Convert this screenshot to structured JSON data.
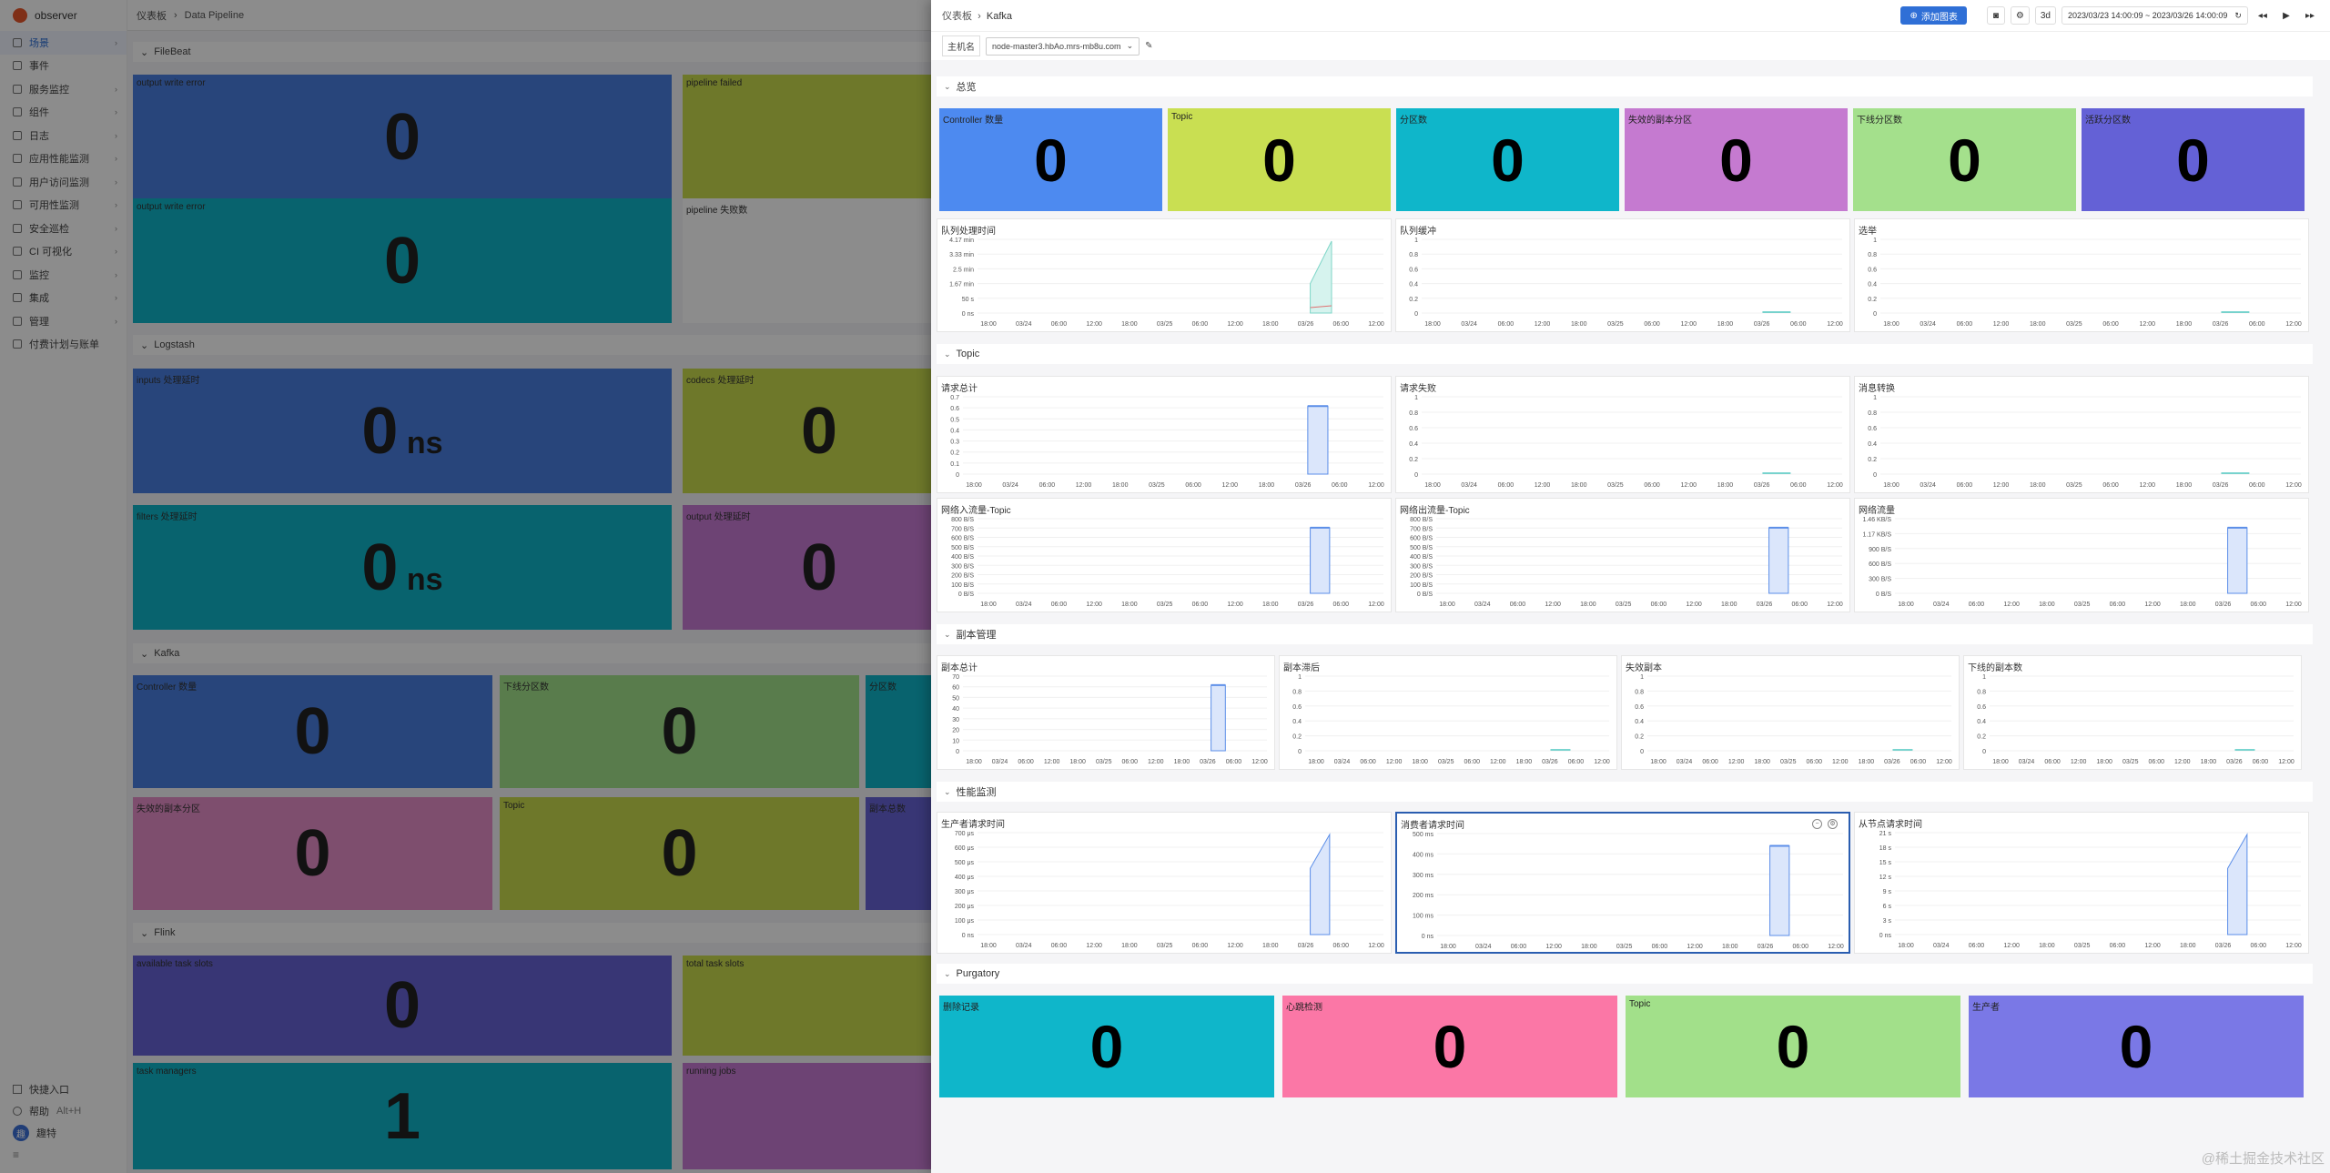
{
  "app": {
    "name": "observer"
  },
  "sidebar": {
    "items": [
      {
        "label": "场景",
        "icon": "grid-icon",
        "arrow": "›"
      },
      {
        "label": "事件",
        "icon": "bell-icon",
        "arrow": ""
      },
      {
        "label": "服务监控",
        "icon": "service-icon",
        "arrow": "›"
      },
      {
        "label": "组件",
        "icon": "cube-icon",
        "arrow": "›"
      },
      {
        "label": "日志",
        "icon": "log-icon",
        "arrow": "›"
      },
      {
        "label": "应用性能监测",
        "icon": "apm-icon",
        "arrow": "›"
      },
      {
        "label": "用户访问监测",
        "icon": "user-icon",
        "arrow": "›"
      },
      {
        "label": "可用性监测",
        "icon": "pulse-icon",
        "arrow": "›"
      },
      {
        "label": "安全巡检",
        "icon": "shield-icon",
        "arrow": "›"
      },
      {
        "label": "CI 可视化",
        "icon": "ci-icon",
        "arrow": "›"
      },
      {
        "label": "监控",
        "icon": "monitor-icon",
        "arrow": "›"
      },
      {
        "label": "集成",
        "icon": "plug-icon",
        "arrow": "›"
      },
      {
        "label": "管理",
        "icon": "gear-icon",
        "arrow": "›"
      },
      {
        "label": "付费计划与账单",
        "icon": "bill-icon",
        "arrow": ""
      }
    ],
    "bottom": [
      {
        "label": "快捷入口"
      },
      {
        "label": "帮助",
        "hint": "Alt+H"
      },
      {
        "label": "趣特",
        "avatar": "趣"
      }
    ]
  },
  "background": {
    "breadcrumb": [
      "仪表板",
      "Data Pipeline"
    ],
    "sections": [
      "FileBeat",
      "Logstash",
      "Kafka",
      "Flink"
    ],
    "panels": [
      {
        "title": "output write error",
        "value": "0",
        "unit": "",
        "color": "#4a7fe0"
      },
      {
        "title": "pipeline failed",
        "value": "",
        "unit": "",
        "color": "#c8da4e"
      },
      {
        "title": "output write error",
        "value": "0",
        "unit": "",
        "color": "#10b5c8"
      },
      {
        "title": "pipeline 失败数",
        "value": "",
        "unit": "",
        "color": "#ffffff"
      },
      {
        "title": "inputs 处理延时",
        "value": "0",
        "unit": "ns",
        "color": "#4a7fe0"
      },
      {
        "title": "codecs 处理延时",
        "value": "0",
        "unit": "",
        "color": "#c8da4e"
      },
      {
        "title": "filters 处理延时",
        "value": "0",
        "unit": "ns",
        "color": "#10b5c8"
      },
      {
        "title": "output 处理延时",
        "value": "0",
        "unit": "",
        "color": "#c77bd4"
      },
      {
        "title": "Controller 数量",
        "value": "0",
        "unit": "",
        "color": "#4a7fe0"
      },
      {
        "title": "下线分区数",
        "value": "0",
        "unit": "",
        "color": "#a3e28a"
      },
      {
        "title": "分区数",
        "value": "",
        "unit": "",
        "color": "#10b5c8"
      },
      {
        "title": "失效的副本分区",
        "value": "0",
        "unit": "",
        "color": "#e58fc9"
      },
      {
        "title": "Topic",
        "value": "0",
        "unit": "",
        "color": "#c8da4e"
      },
      {
        "title": "副本总数",
        "value": "",
        "unit": "",
        "color": "#6663d6"
      },
      {
        "title": "available task slots",
        "value": "0",
        "unit": "",
        "color": "#6663d6"
      },
      {
        "title": "total task slots",
        "value": "",
        "unit": "",
        "color": "#c8da4e"
      },
      {
        "title": "task managers",
        "value": "1",
        "unit": "",
        "color": "#10b5c8"
      },
      {
        "title": "running jobs",
        "value": "",
        "unit": "",
        "color": "#c77bd4"
      }
    ]
  },
  "drawer": {
    "breadcrumb": [
      "仪表板",
      "Kafka"
    ],
    "add_chart": "添加图表",
    "time_shortcut": "3d",
    "time_range": "2023/03/23 14:00:09 ~ 2023/03/26 14:00:09",
    "host_label": "主机名",
    "host_value": "node-master3.hbAo.mrs-mb8u.com",
    "sections": {
      "overview": "总览",
      "topic": "Topic",
      "replica": "副本管理",
      "perf": "性能监测",
      "purgatory": "Purgatory"
    },
    "overview_stats": [
      {
        "title": "Controller 数量",
        "value": "0",
        "color": "#4d8af0"
      },
      {
        "title": "Topic",
        "value": "0",
        "color": "#c9df52"
      },
      {
        "title": "分区数",
        "value": "0",
        "color": "#0fb6ca"
      },
      {
        "title": "失效的副本分区",
        "value": "0",
        "color": "#c57ad0"
      },
      {
        "title": "下线分区数",
        "value": "0",
        "color": "#a4e08c"
      },
      {
        "title": "活跃分区数",
        "value": "0",
        "color": "#6461d6"
      }
    ],
    "purgatory_stats": [
      {
        "title": "删除记录",
        "value": "0",
        "color": "#0fb6ca"
      },
      {
        "title": "心跳检测",
        "value": "0",
        "color": "#fb77a6"
      },
      {
        "title": "Topic",
        "value": "0",
        "color": "#a2e08a"
      },
      {
        "title": "生产者",
        "value": "0",
        "color": "#7a78e6"
      }
    ],
    "x_ticks": [
      "18:00",
      "03/24",
      "06:00",
      "12:00",
      "18:00",
      "03/25",
      "06:00",
      "12:00",
      "18:00",
      "03/26",
      "06:00",
      "12:00"
    ],
    "panels": [
      {
        "id": "queue-time",
        "title": "队列处理时间",
        "yticks": [
          "4.17 min",
          "3.33 min",
          "2.5 min",
          "1.67 min",
          "50 s",
          "0 ns"
        ],
        "kind": "area",
        "color": "#7fd6c8"
      },
      {
        "id": "queue-size",
        "title": "队列缓冲",
        "yticks": [
          "1",
          "0.8",
          "0.6",
          "0.4",
          "0.2",
          "0"
        ],
        "kind": "flat",
        "color": "#4fc7c0"
      },
      {
        "id": "election",
        "title": "选举",
        "yticks": [
          "1",
          "0.8",
          "0.6",
          "0.4",
          "0.2",
          "0"
        ],
        "kind": "flat",
        "color": "#4fc7c0"
      },
      {
        "id": "req-total",
        "title": "请求总计",
        "yticks": [
          "0.7",
          "0.6",
          "0.5",
          "0.4",
          "0.3",
          "0.2",
          "0.1",
          "0"
        ],
        "kind": "block",
        "color": "#5b8ee8"
      },
      {
        "id": "req-fail",
        "title": "请求失败",
        "yticks": [
          "1",
          "0.8",
          "0.6",
          "0.4",
          "0.2",
          "0"
        ],
        "kind": "flat",
        "color": "#4fc7c0"
      },
      {
        "id": "msg-convert",
        "title": "消息转换",
        "yticks": [
          "1",
          "0.8",
          "0.6",
          "0.4",
          "0.2",
          "0"
        ],
        "kind": "flat",
        "color": "#4fc7c0"
      },
      {
        "id": "net-in-topic",
        "title": "网络入流量-Topic",
        "yticks": [
          "800 B/S",
          "700 B/S",
          "600 B/S",
          "500 B/S",
          "400 B/S",
          "300 B/S",
          "200 B/S",
          "100 B/S",
          "0 B/S"
        ],
        "kind": "block",
        "color": "#5b8ee8"
      },
      {
        "id": "net-out-topic",
        "title": "网络出流量-Topic",
        "yticks": [
          "800 B/S",
          "700 B/S",
          "600 B/S",
          "500 B/S",
          "400 B/S",
          "300 B/S",
          "200 B/S",
          "100 B/S",
          "0 B/S"
        ],
        "kind": "block",
        "color": "#5b8ee8"
      },
      {
        "id": "net-flow",
        "title": "网络流量",
        "yticks": [
          "1.46 KB/S",
          "1.17 KB/S",
          "900 B/S",
          "600 B/S",
          "300 B/S",
          "0 B/S"
        ],
        "kind": "block",
        "color": "#5b8ee8"
      },
      {
        "id": "replica-total",
        "title": "副本总计",
        "yticks": [
          "70",
          "60",
          "50",
          "40",
          "30",
          "20",
          "10",
          "0"
        ],
        "kind": "block",
        "color": "#5b8ee8"
      },
      {
        "id": "replica-lag",
        "title": "副本滞后",
        "yticks": [
          "1",
          "0.8",
          "0.6",
          "0.4",
          "0.2",
          "0"
        ],
        "kind": "flat",
        "color": "#4fc7c0"
      },
      {
        "id": "replica-fail",
        "title": "失效副本",
        "yticks": [
          "1",
          "0.8",
          "0.6",
          "0.4",
          "0.2",
          "0"
        ],
        "kind": "flat",
        "color": "#4fc7c0"
      },
      {
        "id": "replica-under",
        "title": "下线的副本数",
        "yticks": [
          "1",
          "0.8",
          "0.6",
          "0.4",
          "0.2",
          "0"
        ],
        "kind": "flat",
        "color": "#4fc7c0"
      },
      {
        "id": "producer-req",
        "title": "生产者请求时间",
        "yticks": [
          "700 μs",
          "600 μs",
          "500 μs",
          "400 μs",
          "300 μs",
          "200 μs",
          "100 μs",
          "0 ns"
        ],
        "kind": "ramp",
        "color": "#5b8ee8"
      },
      {
        "id": "consumer-req",
        "title": "消费者请求时间",
        "yticks": [
          "500 ms",
          "400 ms",
          "300 ms",
          "200 ms",
          "100 ms",
          "0 ns"
        ],
        "kind": "block",
        "color": "#5b8ee8"
      },
      {
        "id": "follower-req",
        "title": "从节点请求时间",
        "yticks": [
          "21 s",
          "18 s",
          "15 s",
          "12 s",
          "9 s",
          "6 s",
          "3 s",
          "0 ns"
        ],
        "kind": "ramp",
        "color": "#5b8ee8"
      }
    ]
  },
  "watermark": "@稀土掘金技术社区"
}
